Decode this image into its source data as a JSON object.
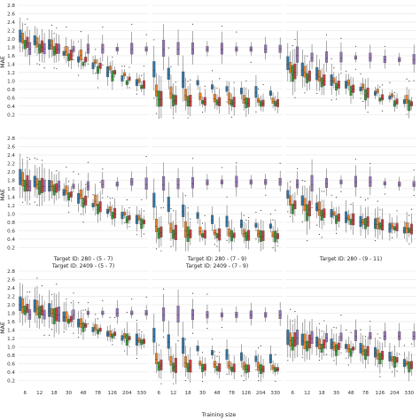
{
  "chart_data": {
    "type": "box",
    "layout": "3x3 grid of panels, shared x and y axes",
    "xlabel": "Training size",
    "ylabel": "MAE",
    "x_ticks": [
      "6",
      "12",
      "18",
      "30",
      "48",
      "78",
      "126",
      "204",
      "330"
    ],
    "y_ticks": [
      "0.2",
      "0.4",
      "0.6",
      "0.8",
      "1.0",
      "1.2",
      "1.4",
      "1.6",
      "1.8",
      "2.0",
      "2.2",
      "2.4",
      "2.6",
      "2.8"
    ],
    "ylim": [
      0.1,
      2.8
    ],
    "grid": "horizontal",
    "series_colors": [
      "#3274a1",
      "#e1812c",
      "#3a923a",
      "#c03d3e",
      "#9372b2"
    ],
    "series_count": 5,
    "panels": [
      {
        "title": "",
        "series_medians": [
          [
            2.05,
            1.95,
            1.85,
            1.65,
            1.5,
            1.35,
            1.2,
            1.05,
            0.95
          ],
          [
            2.0,
            1.9,
            1.85,
            1.7,
            1.6,
            1.45,
            1.3,
            1.15,
            1.0
          ],
          [
            1.85,
            1.75,
            1.7,
            1.55,
            1.4,
            1.25,
            1.1,
            0.95,
            0.85
          ],
          [
            1.9,
            1.8,
            1.75,
            1.6,
            1.5,
            1.35,
            1.2,
            1.05,
            0.9
          ],
          [
            1.75,
            1.75,
            1.75,
            1.75,
            1.75,
            1.75,
            1.75,
            1.75,
            1.75
          ]
        ]
      },
      {
        "title": "",
        "series_medians": [
          [
            1.25,
            1.15,
            1.0,
            0.95,
            0.85,
            0.8,
            0.75,
            0.72,
            0.7
          ],
          [
            0.75,
            0.7,
            0.65,
            0.62,
            0.58,
            0.56,
            0.55,
            0.53,
            0.52
          ],
          [
            0.55,
            0.52,
            0.5,
            0.49,
            0.48,
            0.47,
            0.46,
            0.45,
            0.45
          ],
          [
            0.55,
            0.53,
            0.51,
            0.5,
            0.49,
            0.48,
            0.47,
            0.46,
            0.46
          ],
          [
            1.75,
            1.75,
            1.75,
            1.75,
            1.75,
            1.75,
            1.75,
            1.75,
            1.75
          ]
        ]
      },
      {
        "title": "",
        "series_medians": [
          [
            1.4,
            1.25,
            1.15,
            1.0,
            0.9,
            0.8,
            0.7,
            0.6,
            0.5
          ],
          [
            1.3,
            1.2,
            1.1,
            1.0,
            0.95,
            0.85,
            0.75,
            0.65,
            0.55
          ],
          [
            1.15,
            1.05,
            0.95,
            0.85,
            0.75,
            0.65,
            0.55,
            0.45,
            0.4
          ],
          [
            1.2,
            1.1,
            1.0,
            0.9,
            0.8,
            0.7,
            0.6,
            0.5,
            0.45
          ],
          [
            1.6,
            1.55,
            1.55,
            1.55,
            1.55,
            1.55,
            1.5,
            1.5,
            1.5
          ]
        ]
      },
      {
        "title": "Target ID: 280 - (5 - 7)",
        "series_medians": [
          [
            1.85,
            1.75,
            1.65,
            1.5,
            1.35,
            1.2,
            1.05,
            0.95,
            0.85
          ],
          [
            1.8,
            1.7,
            1.65,
            1.55,
            1.45,
            1.3,
            1.1,
            1.0,
            0.9
          ],
          [
            1.65,
            1.6,
            1.55,
            1.4,
            1.25,
            1.1,
            0.95,
            0.85,
            0.75
          ],
          [
            1.7,
            1.65,
            1.6,
            1.45,
            1.3,
            1.15,
            1.0,
            0.9,
            0.8
          ],
          [
            1.65,
            1.65,
            1.65,
            1.65,
            1.65,
            1.7,
            1.7,
            1.75,
            1.7
          ]
        ]
      },
      {
        "title": "Target ID: 280 - (7 - 9)",
        "series_medians": [
          [
            1.3,
            1.2,
            1.05,
            0.95,
            0.85,
            0.8,
            0.75,
            0.72,
            0.7
          ],
          [
            0.7,
            0.65,
            0.6,
            0.58,
            0.55,
            0.54,
            0.53,
            0.52,
            0.5
          ],
          [
            0.52,
            0.5,
            0.49,
            0.48,
            0.47,
            0.46,
            0.45,
            0.45,
            0.44
          ],
          [
            0.55,
            0.53,
            0.51,
            0.5,
            0.49,
            0.48,
            0.47,
            0.46,
            0.46
          ],
          [
            1.7,
            1.7,
            1.72,
            1.74,
            1.75,
            1.75,
            1.75,
            1.75,
            1.75
          ]
        ]
      },
      {
        "title": "Target ID: 280 - (9 - 11)",
        "series_medians": [
          [
            1.45,
            1.3,
            1.15,
            1.0,
            0.9,
            0.8,
            0.75,
            0.65,
            0.6
          ],
          [
            1.3,
            1.2,
            1.1,
            1.0,
            0.9,
            0.8,
            0.75,
            0.7,
            0.65
          ],
          [
            1.1,
            1.0,
            0.95,
            0.85,
            0.8,
            0.75,
            0.7,
            0.65,
            0.6
          ],
          [
            1.2,
            1.1,
            1.0,
            0.9,
            0.85,
            0.8,
            0.72,
            0.67,
            0.62
          ],
          [
            1.7,
            1.7,
            1.72,
            1.75,
            1.75,
            1.75,
            1.72,
            1.7,
            1.7
          ]
        ]
      },
      {
        "title": "Target ID: 2409 - (5 - 7)",
        "series_medians": [
          [
            2.0,
            1.95,
            1.85,
            1.7,
            1.55,
            1.4,
            1.3,
            1.2,
            1.15
          ],
          [
            1.95,
            1.9,
            1.8,
            1.7,
            1.55,
            1.45,
            1.3,
            1.25,
            1.15
          ],
          [
            1.85,
            1.8,
            1.7,
            1.6,
            1.45,
            1.35,
            1.25,
            1.15,
            1.1
          ],
          [
            1.9,
            1.85,
            1.75,
            1.65,
            1.5,
            1.4,
            1.3,
            1.2,
            1.12
          ],
          [
            1.75,
            1.75,
            1.75,
            1.75,
            1.8,
            1.8,
            1.8,
            1.8,
            1.8
          ]
        ]
      },
      {
        "title": "Target ID: 2409 - (7 - 9)",
        "series_medians": [
          [
            1.25,
            1.1,
            1.0,
            0.95,
            0.85,
            0.8,
            0.75,
            0.7,
            0.7
          ],
          [
            0.7,
            0.65,
            0.62,
            0.6,
            0.57,
            0.55,
            0.53,
            0.52,
            0.5
          ],
          [
            0.52,
            0.5,
            0.49,
            0.48,
            0.47,
            0.46,
            0.46,
            0.45,
            0.45
          ],
          [
            0.55,
            0.53,
            0.52,
            0.5,
            0.49,
            0.48,
            0.47,
            0.46,
            0.46
          ],
          [
            1.75,
            1.75,
            1.75,
            1.75,
            1.75,
            1.75,
            1.75,
            1.75,
            1.75
          ]
        ]
      },
      {
        "title": "",
        "series_medians": [
          [
            1.2,
            1.15,
            1.1,
            1.05,
            1.0,
            0.95,
            0.85,
            0.75,
            0.6
          ],
          [
            1.15,
            1.1,
            1.05,
            1.0,
            0.95,
            0.9,
            0.8,
            0.7,
            0.6
          ],
          [
            1.05,
            1.0,
            0.95,
            0.9,
            0.85,
            0.8,
            0.7,
            0.62,
            0.5
          ],
          [
            1.15,
            1.1,
            1.05,
            1.0,
            0.95,
            0.88,
            0.78,
            0.68,
            0.55
          ],
          [
            1.2,
            1.2,
            1.2,
            1.22,
            1.25,
            1.25,
            1.25,
            1.25,
            1.25
          ]
        ]
      }
    ]
  }
}
